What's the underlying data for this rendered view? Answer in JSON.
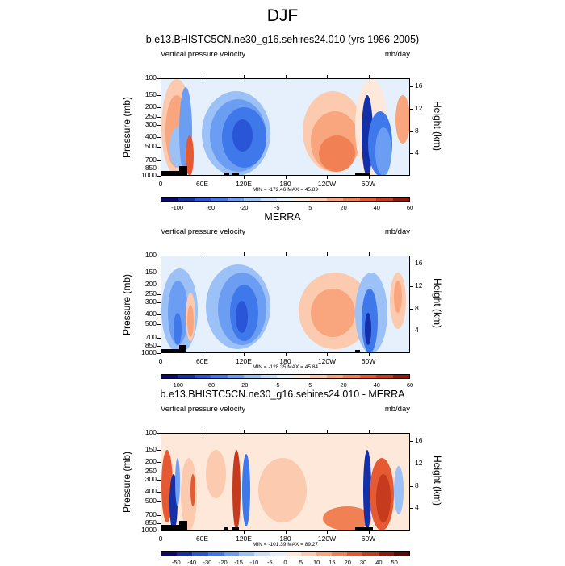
{
  "figure_title": "DJF",
  "panels": [
    {
      "title": "b.e13.BHISTC5CN.ne30_g16.sehires24.010 (yrs 1986-2005)",
      "left_label": "Vertical pressure velocity",
      "right_label": "mb/day",
      "y_axis_label": "Pressure (mb)",
      "y2_axis_label": "Height (km)",
      "stats": "MIN = -172.46  MAX =  45.89",
      "colorbar_labels": [
        "-100",
        "-60",
        "-20",
        "-5",
        "5",
        "20",
        "40",
        "60"
      ]
    },
    {
      "title": "MERRA",
      "left_label": "Vertical pressure velocity",
      "right_label": "mb/day",
      "y_axis_label": "Pressure (mb)",
      "y2_axis_label": "Height (km)",
      "stats": "MIN = -128.35  MAX =  45.84",
      "colorbar_labels": [
        "-100",
        "-60",
        "-20",
        "-5",
        "5",
        "20",
        "40",
        "60"
      ]
    },
    {
      "title": "b.e13.BHISTC5CN.ne30_g16.sehires24.010 - MERRA",
      "left_label": "Vertical pressure velocity",
      "right_label": "mb/day",
      "y_axis_label": "Pressure (mb)",
      "y2_axis_label": "Height (km)",
      "stats": "MIN = -101.39  MAX =  89.27",
      "colorbar_labels": [
        "-50",
        "-40",
        "-30",
        "-20",
        "-15",
        "-10",
        "-5",
        "0",
        "5",
        "10",
        "15",
        "20",
        "30",
        "40",
        "50"
      ]
    }
  ],
  "chart_data": {
    "type": "heatmap",
    "x_ticks": [
      "0",
      "60E",
      "120E",
      "180",
      "120W",
      "60W"
    ],
    "y_ticks_pressure": [
      "100",
      "150",
      "200",
      "250",
      "300",
      "400",
      "500",
      "700",
      "850",
      "1000"
    ],
    "y_ticks_height": [
      "16",
      "12",
      "8",
      "4"
    ],
    "ylim_pressure": [
      1000,
      100
    ],
    "ylim_height_km": [
      0,
      16
    ],
    "colors": {
      "panel_colors_abs": [
        "#0a0a6e",
        "#1330a8",
        "#2a55d6",
        "#3f78ea",
        "#6b9ef2",
        "#9cc1f6",
        "#c9defb",
        "#e6f0fd",
        "#fde8da",
        "#fccaae",
        "#f9a67f",
        "#f28055",
        "#e55a33",
        "#c63a1e",
        "#8e1a0c"
      ],
      "panel_colors_diff": [
        "#0a0a6e",
        "#1330a8",
        "#2a55d6",
        "#3f78ea",
        "#6b9ef2",
        "#9cc1f6",
        "#c9defb",
        "#e6f0fd",
        "#fde8da",
        "#fccaae",
        "#f9a67f",
        "#f28055",
        "#e55a33",
        "#c63a1e",
        "#8e1a0c",
        "#5e0a04"
      ]
    }
  }
}
